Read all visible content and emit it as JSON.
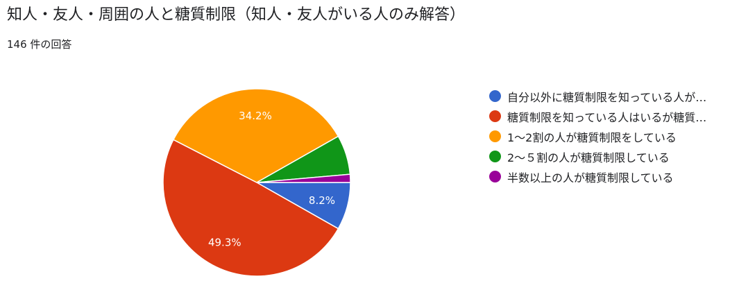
{
  "title": "知人・友人・周囲の人と糖質制限（知人・友人がいる人のみ解答）",
  "response_count": "146 件の回答",
  "chart_data": {
    "type": "pie",
    "categories": [
      "自分以外に糖質制限を知っている人が…",
      "糖質制限を知っている人はいるが糖質…",
      "1〜2割の人が糖質制限をしている",
      "2〜５割の人が糖質制限している",
      "半数以上の人が糖質制限している"
    ],
    "values": [
      8.2,
      49.3,
      34.2,
      6.8,
      1.4
    ],
    "data_labels": [
      "8.2%",
      "49.3%",
      "34.2%",
      "",
      ""
    ],
    "colors": [
      "#3366cc",
      "#dc3912",
      "#ff9900",
      "#109618",
      "#990099"
    ],
    "start_angle_deg": 90,
    "direction": "clockwise",
    "legend_position": "right"
  }
}
